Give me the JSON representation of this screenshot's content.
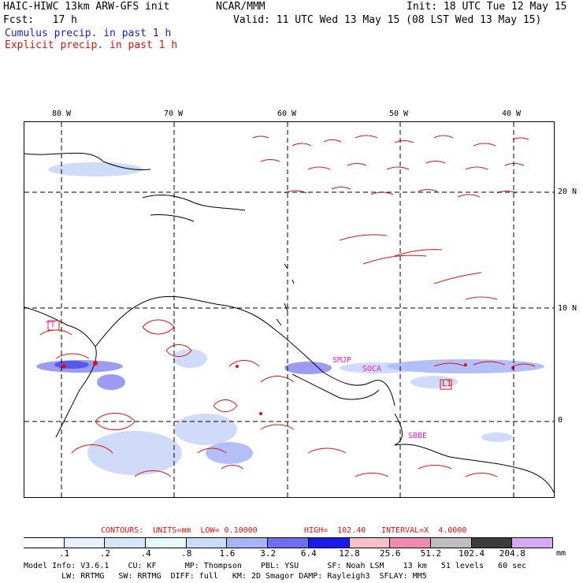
{
  "header": {
    "model": "HAIC-HIWC 13km ARW-GFS init",
    "org": "NCAR/MMM",
    "init": "Init: 18 UTC Tue 12 May 15",
    "fcst": "Fcst:   17 h",
    "valid": "Valid: 11 UTC Wed 13 May 15 (08 LST Wed 13 May 15)",
    "cumulus": "Cumulus precip. in past 1 h",
    "explicit": "Explicit precip. in past 1 h"
  },
  "colors": {
    "cumulus": "#1c1cd6",
    "explicit": "#e01010",
    "contour": "#e01010",
    "station": "#e020e0"
  },
  "map": {
    "lon_labels": [
      "80 W",
      "70 W",
      "60 W",
      "50 W",
      "40 W"
    ],
    "lat_labels": [
      "20 N",
      "10 N",
      "0"
    ],
    "stations": [
      "TT",
      "SMJP",
      "SOCA",
      "L1",
      "SBBE"
    ],
    "contour_labels": [
      "L1"
    ]
  },
  "contours_line": {
    "label_contours": "CONTOURS:  UNITS=mm  LOW= 0.10000",
    "label_high": "HIGH=  102.40",
    "label_interval": "INTERVAL=X  4.0000"
  },
  "legend": {
    "units": "mm",
    "labels": [
      ".1",
      ".2",
      ".4",
      ".8",
      "1.6",
      "3.2",
      "6.4",
      "12.8",
      "25.6",
      "51.2",
      "102.4",
      "204.8"
    ],
    "colors": [
      "#ffffff",
      "#e8f0fc",
      "#d6e6f8",
      "#e6fafa",
      "#c8dcfa",
      "#a8b4f8",
      "#6e6ef0",
      "#1a1aee",
      "#f8c0c8",
      "#f088b0",
      "#bebebe",
      "#3c3c3c",
      "#d8a8f8"
    ]
  },
  "footer": {
    "line1": "Model Info: V3.6.1    CU: KF      MP: Thompson    PBL: YSU      SF: Noah LSM    13 km   51 levels   60 sec",
    "line2": "        LW: RRTMG   SW: RRTMG  DIFF: full   KM: 2D Smagor DAMP: Rayleigh3  SFLAY: MM5"
  }
}
